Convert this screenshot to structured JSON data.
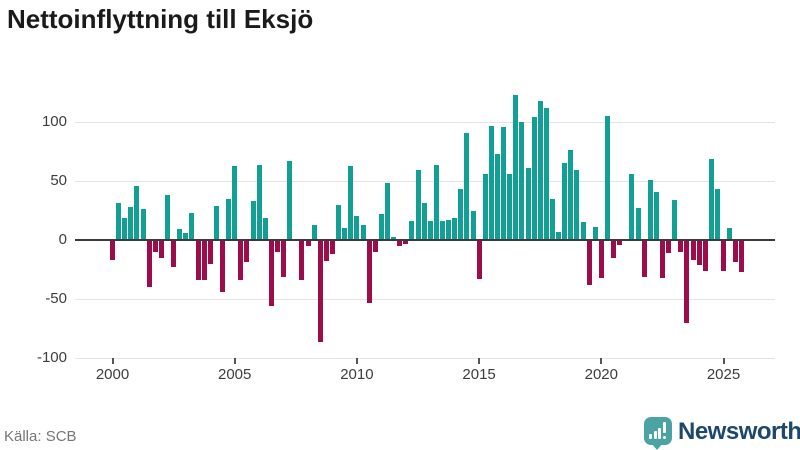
{
  "title": "Nettoinflyttning till Eksjö",
  "source": "Källa: SCB",
  "brand": {
    "name": "Newsworthy",
    "icon": "newsworthy-speech-bubble-bar-chart-icon"
  },
  "colors": {
    "positive_bar": "#13a094",
    "negative_bar": "#9e0d4b",
    "grid": "#e4e4e4",
    "zero_line": "#3a3a3a",
    "axis_text": "#3d3d3d",
    "title_text": "#1a1a1a",
    "source_text": "#767676",
    "brand_teal": "#4ba3a3",
    "brand_navy": "#1e486b"
  },
  "axes": {
    "y_ticks": [
      {
        "value": 100,
        "label": "100"
      },
      {
        "value": 50,
        "label": "50"
      },
      {
        "value": 0,
        "label": "0"
      },
      {
        "value": -50,
        "label": "-50"
      },
      {
        "value": -100,
        "label": "-100"
      }
    ],
    "x_ticks": [
      "2000",
      "2005",
      "2010",
      "2015",
      "2020",
      "2025"
    ]
  },
  "chart_data": {
    "type": "bar",
    "title": "Nettoinflyttning till Eksjö",
    "xlabel": "",
    "ylabel": "",
    "ylim": [
      -100,
      125
    ],
    "grid": true,
    "legend": false,
    "x_unit": "quarter",
    "x": [
      "2000 Q1",
      "2000 Q2",
      "2000 Q3",
      "2000 Q4",
      "2001 Q1",
      "2001 Q2",
      "2001 Q3",
      "2001 Q4",
      "2002 Q1",
      "2002 Q2",
      "2002 Q3",
      "2002 Q4",
      "2003 Q1",
      "2003 Q2",
      "2003 Q3",
      "2003 Q4",
      "2004 Q1",
      "2004 Q2",
      "2004 Q3",
      "2004 Q4",
      "2005 Q1",
      "2005 Q2",
      "2005 Q3",
      "2005 Q4",
      "2006 Q1",
      "2006 Q2",
      "2006 Q3",
      "2006 Q4",
      "2007 Q1",
      "2007 Q2",
      "2007 Q3",
      "2007 Q4",
      "2008 Q1",
      "2008 Q2",
      "2008 Q3",
      "2008 Q4",
      "2009 Q1",
      "2009 Q2",
      "2009 Q3",
      "2009 Q4",
      "2010 Q1",
      "2010 Q2",
      "2010 Q3",
      "2010 Q4",
      "2011 Q1",
      "2011 Q2",
      "2011 Q3",
      "2011 Q4",
      "2012 Q1",
      "2012 Q2",
      "2012 Q3",
      "2012 Q4",
      "2013 Q1",
      "2013 Q2",
      "2013 Q3",
      "2013 Q4",
      "2014 Q1",
      "2014 Q2",
      "2014 Q3",
      "2014 Q4",
      "2015 Q1",
      "2015 Q2",
      "2015 Q3",
      "2015 Q4",
      "2016 Q1",
      "2016 Q2",
      "2016 Q3",
      "2016 Q4",
      "2017 Q1",
      "2017 Q2",
      "2017 Q3",
      "2017 Q4",
      "2018 Q1",
      "2018 Q2",
      "2018 Q3",
      "2018 Q4",
      "2019 Q1",
      "2019 Q2",
      "2019 Q3",
      "2019 Q4",
      "2020 Q1",
      "2020 Q2",
      "2020 Q3",
      "2020 Q4",
      "2021 Q1",
      "2021 Q2",
      "2021 Q3",
      "2021 Q4",
      "2022 Q1",
      "2022 Q2",
      "2022 Q3",
      "2022 Q4",
      "2023 Q1",
      "2023 Q2",
      "2023 Q3",
      "2023 Q4",
      "2024 Q1",
      "2024 Q2",
      "2024 Q3",
      "2024 Q4",
      "2025 Q1",
      "2025 Q2",
      "2025 Q3",
      "2025 Q4"
    ],
    "values": [
      -17,
      31,
      19,
      28,
      46,
      26,
      -40,
      -10,
      -15,
      38,
      -23,
      9,
      6,
      23,
      -34,
      -34,
      -20,
      29,
      -44,
      35,
      63,
      -34,
      -19,
      33,
      64,
      19,
      -56,
      -10,
      -31,
      67,
      0,
      -34,
      -5,
      13,
      -86,
      -18,
      -12,
      30,
      10,
      63,
      20,
      13,
      -53,
      -10,
      22,
      48,
      3,
      -5,
      -3,
      16,
      59,
      31,
      16,
      64,
      16,
      17,
      19,
      43,
      91,
      25,
      -33,
      56,
      97,
      73,
      96,
      56,
      123,
      100,
      61,
      104,
      118,
      112,
      35,
      7,
      65,
      76,
      59,
      15,
      -38,
      11,
      -32,
      105,
      -15,
      -4,
      0,
      56,
      27,
      -31,
      51,
      41,
      -32,
      -11,
      34,
      -10,
      -70,
      -17,
      -21,
      -26,
      69,
      43,
      -26,
      10,
      -19,
      -27
    ]
  }
}
